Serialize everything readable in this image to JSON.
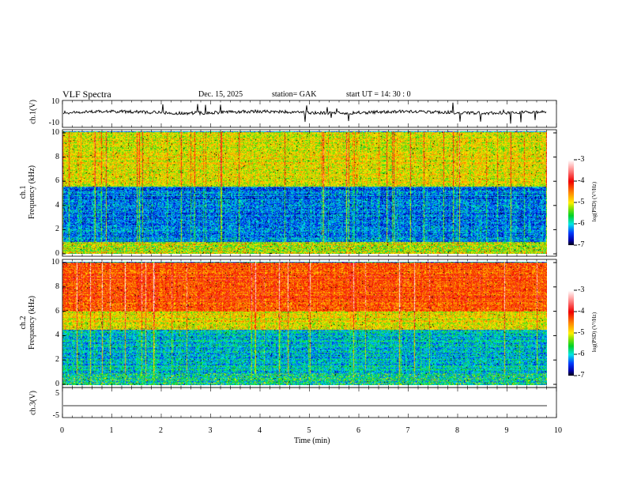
{
  "header": {
    "title": "VLF  Spectra",
    "date": "Dec. 15,  2025",
    "station": "station= GAK",
    "start": "start  UT  =    14: 30 : 0"
  },
  "chart_data": [
    {
      "type": "line",
      "name": "ch1",
      "ylabel": "ch.1(V)",
      "ylim": [
        -10,
        10
      ],
      "yticks": [
        "10",
        "-10"
      ],
      "xlim": [
        0,
        10
      ],
      "baseline": 0
    },
    {
      "type": "heatmap",
      "name": "ch1-spectrogram",
      "ylabel": "ch.1\nFrequency  (kHz)",
      "ylim": [
        0,
        10
      ],
      "yticks": [
        "0",
        "2",
        "4",
        "6",
        "8",
        "10"
      ],
      "xlim": [
        0,
        9.8
      ],
      "bands": [
        {
          "fmin": 0,
          "fmax": 1,
          "level": -5.3
        },
        {
          "fmin": 1,
          "fmax": 5.5,
          "level": -6.3
        },
        {
          "fmin": 5.5,
          "fmax": 10,
          "level": -5.0
        }
      ],
      "colorbar": {
        "label": "log(PSD) (V²/Hz)",
        "ticks": [
          "-3",
          "-4",
          "-5",
          "-6",
          "-7"
        ],
        "range": [
          -7,
          -3
        ]
      }
    },
    {
      "type": "heatmap",
      "name": "ch2-spectrogram",
      "ylabel": "ch.2\nFrequency  (kHz)",
      "ylim": [
        0,
        10
      ],
      "yticks": [
        "0",
        "2",
        "4",
        "6",
        "8",
        "10"
      ],
      "xlim": [
        0,
        9.8
      ],
      "bands": [
        {
          "fmin": 0,
          "fmax": 4.5,
          "level": -6.0
        },
        {
          "fmin": 4.5,
          "fmax": 6,
          "level": -5.0
        },
        {
          "fmin": 6,
          "fmax": 10,
          "level": -4.3
        }
      ],
      "colorbar": {
        "label": "log(PSD) (V²/Hz)",
        "ticks": [
          "-3",
          "-4",
          "-5",
          "-6",
          "-7"
        ],
        "range": [
          -7,
          -3
        ]
      }
    },
    {
      "type": "line",
      "name": "ch3",
      "ylabel": "ch.3(V)",
      "ylim": [
        -5,
        5
      ],
      "yticks": [
        "5",
        "-5"
      ],
      "xlim": [
        0,
        10
      ],
      "baseline": -1.8
    }
  ],
  "xaxis": {
    "label": "Time  (min)",
    "ticks": [
      "0",
      "1",
      "2",
      "3",
      "4",
      "5",
      "6",
      "7",
      "8",
      "9",
      "10"
    ]
  }
}
